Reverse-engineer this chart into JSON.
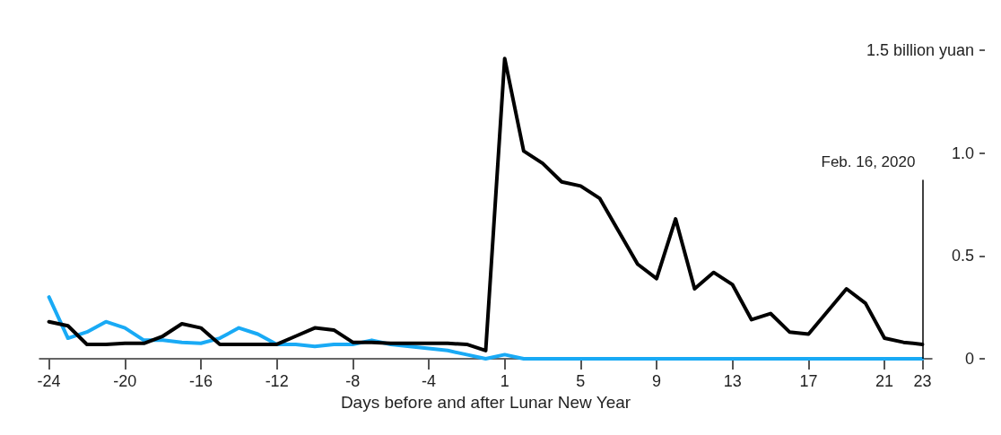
{
  "chart_data": {
    "type": "line",
    "xlabel": "Days before and after Lunar New Year",
    "categories": [
      "-24",
      null,
      null,
      null,
      "-20",
      null,
      null,
      null,
      "-16",
      null,
      null,
      null,
      "-12",
      null,
      null,
      null,
      "-8",
      null,
      null,
      null,
      "-4",
      null,
      null,
      null,
      "1",
      null,
      null,
      null,
      "5",
      null,
      null,
      null,
      "9",
      null,
      null,
      null,
      "13",
      null,
      null,
      null,
      "17",
      null,
      null,
      null,
      "21",
      null,
      "23"
    ],
    "series": [
      {
        "color": "#000000",
        "values": [
          0.18,
          0.16,
          0.07,
          0.07,
          0.075,
          0.075,
          0.11,
          0.17,
          0.15,
          0.07,
          0.07,
          0.07,
          0.07,
          0.11,
          0.15,
          0.14,
          0.08,
          0.08,
          0.075,
          0.075,
          0.075,
          0.075,
          0.07,
          0.04,
          1.46,
          1.01,
          0.95,
          0.86,
          0.84,
          0.78,
          0.62,
          0.46,
          0.39,
          0.68,
          0.34,
          0.42,
          0.36,
          0.19,
          0.22,
          0.13,
          0.12,
          0.23,
          0.34,
          0.27,
          0.1,
          0.08,
          0.07
        ]
      },
      {
        "color": "#19aaf5",
        "values": [
          0.3,
          0.1,
          0.13,
          0.18,
          0.15,
          0.09,
          0.09,
          0.08,
          0.075,
          0.1,
          0.15,
          0.12,
          0.07,
          0.07,
          0.06,
          0.07,
          0.07,
          0.09,
          0.07,
          0.06,
          0.05,
          0.04,
          0.02,
          0,
          0.02,
          0,
          0,
          0,
          0,
          0,
          0,
          0,
          0,
          0,
          0,
          0,
          0,
          0,
          0,
          0,
          0,
          0,
          0,
          0,
          0,
          0,
          0
        ]
      }
    ],
    "ylim": [
      0,
      1.5
    ],
    "yticks": [
      0,
      0.5,
      {
        "value": 1,
        "label": "1.0"
      },
      {
        "value": 1.5,
        "label": "1.5 billion yuan"
      }
    ],
    "ref_lines": [
      {
        "axis": "x",
        "value": "23",
        "label": "Feb. 16, 2020",
        "color": "#000000"
      }
    ],
    "grid": false,
    "marker": "none",
    "line_style": "solid"
  }
}
